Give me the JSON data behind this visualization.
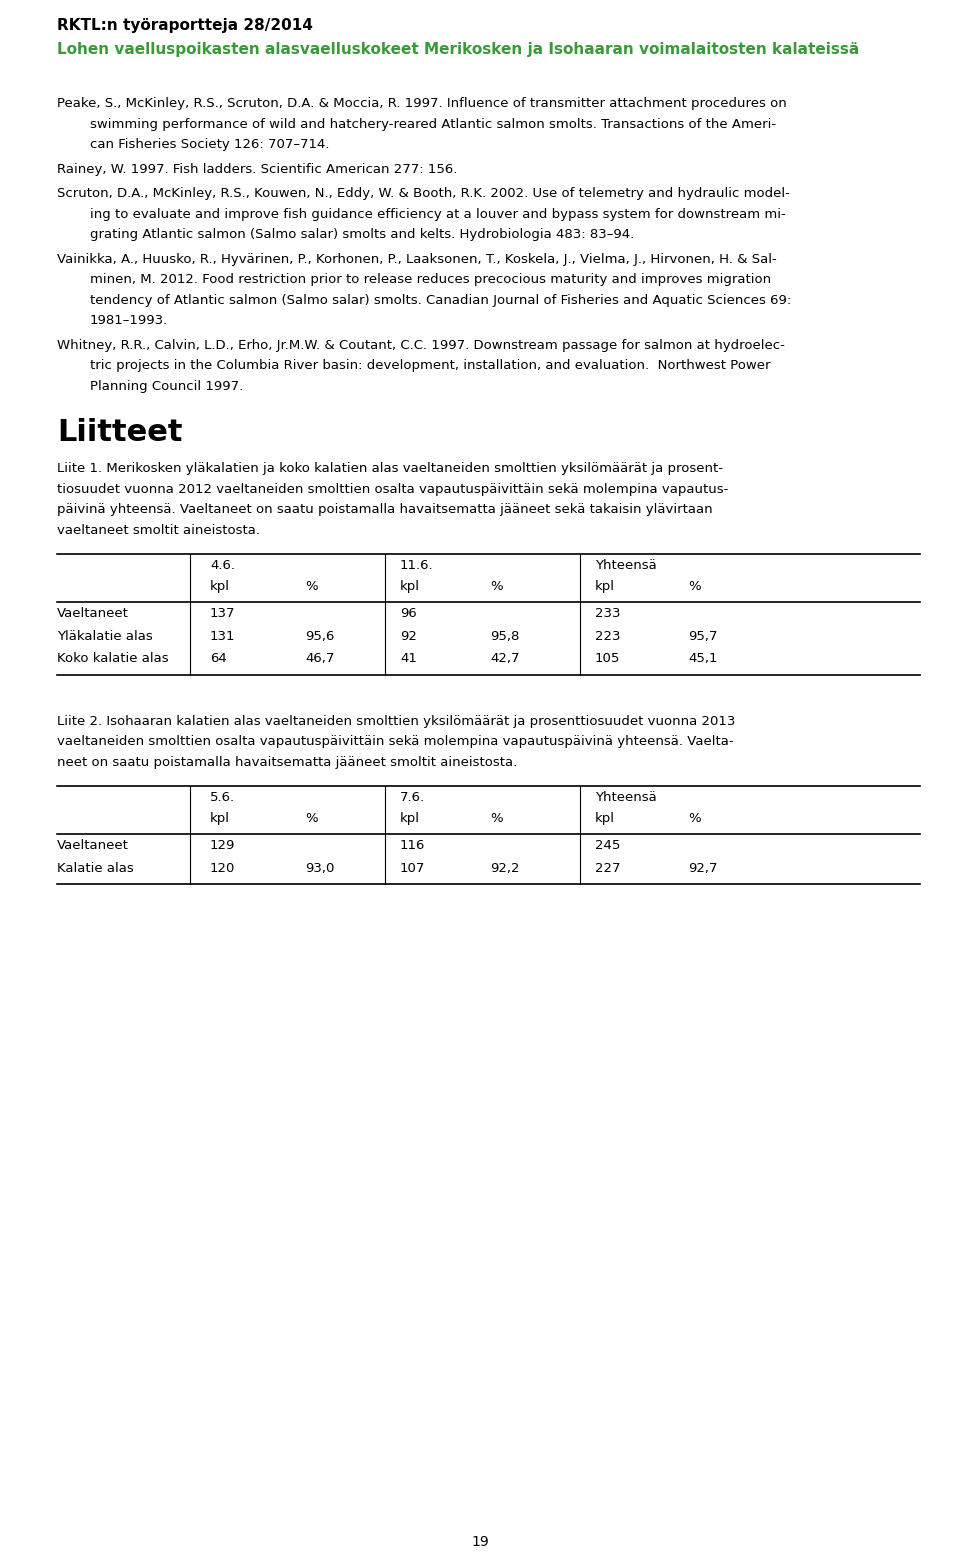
{
  "header_bold": "RKTL:n työraportteja 28/2014",
  "header_green": "Lohen vaelluspoikasten alasvaelluskokeet Merikosken ja Isohaaran voimalaitosten kalateissä",
  "green_color": "#3a9a3a",
  "references": [
    {
      "first_line": "Peake, S., McKinley, R.S., Scruton, D.A. & Moccia, R. 1997. Influence of transmitter attachment procedures on",
      "cont_lines": [
        "swimming performance of wild and hatchery-reared Atlantic salmon smolts. ⁠Transactions of the Ameri-",
        "can Fisheries Society⁠ 126: 707–714."
      ],
      "italic_journal": "Transactions of the American Fisheries Society"
    },
    {
      "first_line": "Rainey, W. 1997. Fish ladders. Scientific American 277: 156.",
      "cont_lines": [],
      "italic_journal": ""
    },
    {
      "first_line": "Scruton, D.A., McKinley, R.S., Kouwen, N., Eddy, W. & Booth, R.K. 2002. Use of telemetry and hydraulic model-",
      "cont_lines": [
        "ing to evaluate and improve fish guidance efficiency at a louver and bypass system for downstream mi-",
        "grating Atlantic salmon (⁠Salmo salar⁠) smolts and kelts. ⁠Hydrobiologia⁠ 483: 83–94."
      ],
      "italic_journal": "Hydrobiologia"
    },
    {
      "first_line": "Vainikka, A., Huusko, R., Hyvärinen, P., Korhonen, P., Laaksonen, T., Koskela, J., Vielma, J., Hirvonen, H. & Sal-",
      "cont_lines": [
        "minen, M. 2012. Food restriction prior to release reduces precocious maturity and improves migration",
        "tendency of Atlantic salmon (⁠Salmo salar⁠) smolts. ⁠Canadian Journal of Fisheries and Aquatic Sciences⁠ 69:",
        "1981–1993."
      ],
      "italic_journal": "Canadian Journal of Fisheries and Aquatic Sciences"
    },
    {
      "first_line": "Whitney, R.R., Calvin, L.D., Erho, Jr.M.W. & Coutant, C.C. 1997. Downstream passage for salmon at hydroelec-",
      "cont_lines": [
        "tric projects in the Columbia River basin: development, installation, and evaluation.  Northwest Power",
        "Planning Council 1997."
      ],
      "italic_journal": ""
    }
  ],
  "liitteet_heading": "Liitteet",
  "liite1_lines": [
    "Liite 1. Merikosken yläkalatien ja koko kalatien alas vaeltaneiden smolttien yksilömäärät ja prosent-",
    "tiosuudet vuonna 2012 vaeltaneiden smolttien osalta vapautuspäivittäin sekä molempina vapautus-",
    "päivinä yhteensä. Vaeltaneet on saatu poistamalla havaitsematta jääneet sekä takaisin ylävirtaan",
    "vaeltaneet smoltit aineistosta."
  ],
  "table1_date1": "4.6.",
  "table1_date2": "11.6.",
  "table1_yhteensa": "Yhteensä",
  "table1_rows": [
    [
      "Vaeltaneet",
      "137",
      "",
      "96",
      "",
      "233",
      ""
    ],
    [
      "Yläkalatie alas",
      "131",
      "95,6",
      "92",
      "95,8",
      "223",
      "95,7"
    ],
    [
      "Koko kalatie alas",
      "64",
      "46,7",
      "41",
      "42,7",
      "105",
      "45,1"
    ]
  ],
  "liite2_lines": [
    "Liite 2. Isohaaran kalatien alas vaeltaneiden smolttien yksilömäärät ja prosenttiosuudet vuonna 2013",
    "vaeltaneiden smolttien osalta vapautuspäivittäin sekä molempina vapautuspäivinä yhteensä. Vaelta-",
    "neet on saatu poistamalla havaitsematta jääneet smoltit aineistosta."
  ],
  "table2_date1": "5.6.",
  "table2_date2": "7.6.",
  "table2_yhteensa": "Yhteensä",
  "table2_rows": [
    [
      "Vaeltaneet",
      "129",
      "",
      "116",
      "",
      "245",
      ""
    ],
    [
      "Kalatie alas",
      "120",
      "93,0",
      "107",
      "92,2",
      "227",
      "92,7"
    ]
  ],
  "page_number": "19",
  "background_color": "#ffffff"
}
